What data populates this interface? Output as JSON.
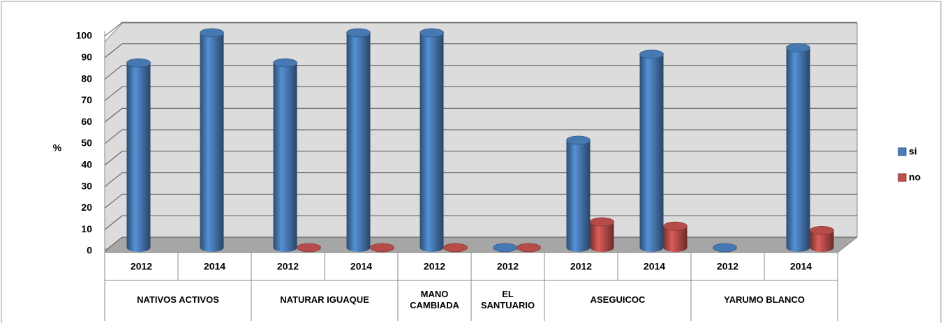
{
  "chart_data": {
    "type": "bar3d",
    "y_label": "%",
    "categories": [
      "2012",
      "2014",
      "2012",
      "2014",
      "2012",
      "2012",
      "2012",
      "2014",
      "2012",
      "2014"
    ],
    "groups": [
      {
        "name": "NATIVOS ACTIVOS",
        "span": 2
      },
      {
        "name": "NATURAR IGUAQUE",
        "span": 2
      },
      {
        "name": "MANO CAMBIADA",
        "span": 1
      },
      {
        "name": "EL SANTUARIO",
        "span": 1
      },
      {
        "name": "ASEGUICOC",
        "span": 2
      },
      {
        "name": "YARUMO BLANCO",
        "span": 2
      }
    ],
    "series": [
      {
        "name": "si",
        "color": "#4a7ebb",
        "values": [
          86,
          100,
          86,
          100,
          100,
          0,
          50,
          90,
          0,
          93
        ]
      },
      {
        "name": "no",
        "color": "#c0504d",
        "values": [
          null,
          null,
          0,
          0,
          0,
          0,
          12,
          10,
          null,
          8
        ]
      }
    ],
    "ylim": [
      0,
      100
    ],
    "yticks": [
      0,
      10,
      20,
      30,
      40,
      50,
      60,
      70,
      80,
      90,
      100
    ],
    "grid": true,
    "legend": "right"
  }
}
